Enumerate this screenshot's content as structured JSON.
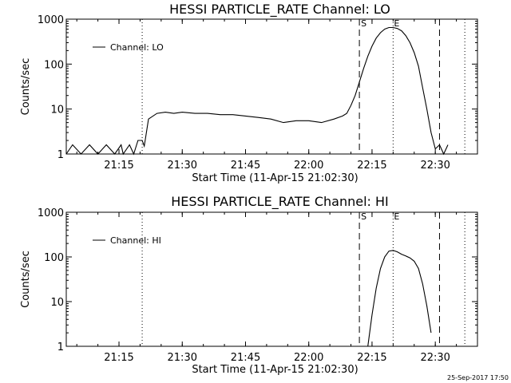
{
  "chart_data": [
    {
      "type": "line",
      "title": "HESSI PARTICLE_RATE Channel: LO",
      "xlabel": "Start Time (11-Apr-15 21:02:30)",
      "ylabel": "Counts/sec",
      "yscale": "log",
      "ylim": [
        1,
        1000
      ],
      "xlim": [
        "21:02:30",
        "22:40:00"
      ],
      "x_ticks": [
        "21:15",
        "21:30",
        "21:45",
        "22:00",
        "22:15",
        "22:30"
      ],
      "y_ticks": [
        "1",
        "10",
        "100",
        "1000"
      ],
      "grid": false,
      "legend_position": "top-left",
      "flare_markers": {
        "start_label": "S",
        "end_label": "E"
      },
      "series": [
        {
          "name": "Channel: LO",
          "x": [
            "21:02:30",
            "21:04:00",
            "21:06:00",
            "21:08:00",
            "21:10:00",
            "21:12:00",
            "21:14:00",
            "21:15:30",
            "21:16:00",
            "21:17:30",
            "21:18:30",
            "21:19:30",
            "21:20:30",
            "21:21:00",
            "21:22:00",
            "21:24:00",
            "21:26:00",
            "21:28:00",
            "21:30:00",
            "21:33:00",
            "21:36:00",
            "21:39:00",
            "21:42:00",
            "21:45:00",
            "21:48:00",
            "21:51:00",
            "21:54:00",
            "21:57:00",
            "22:00:00",
            "22:03:00",
            "22:06:00",
            "22:08:00",
            "22:09:00",
            "22:10:00",
            "22:11:00",
            "22:12:00",
            "22:13:00",
            "22:14:00",
            "22:15:00",
            "22:16:00",
            "22:17:00",
            "22:18:00",
            "22:19:00",
            "22:20:00",
            "22:21:00",
            "22:22:00",
            "22:23:00",
            "22:24:00",
            "22:25:00",
            "22:26:00",
            "22:27:00",
            "22:28:00",
            "22:29:00",
            "22:30:00",
            "22:31:00",
            "22:32:00",
            "22:33:00"
          ],
          "y": [
            1,
            1.6,
            1,
            1.6,
            1,
            1.6,
            1,
            1.6,
            1,
            1.6,
            1,
            2,
            2,
            1.5,
            6,
            8,
            8.5,
            8,
            8.5,
            8,
            8,
            7.5,
            7.5,
            7,
            6.5,
            6,
            5,
            5.5,
            5.5,
            5,
            6,
            7,
            8,
            12,
            20,
            40,
            80,
            150,
            250,
            380,
            500,
            600,
            650,
            650,
            620,
            550,
            430,
            300,
            180,
            90,
            30,
            10,
            3,
            1.3,
            1.6,
            1,
            1.6
          ]
        }
      ]
    },
    {
      "type": "line",
      "title": "HESSI PARTICLE_RATE Channel: HI",
      "xlabel": "Start Time (11-Apr-15 21:02:30)",
      "ylabel": "Counts/sec",
      "yscale": "log",
      "ylim": [
        1,
        1000
      ],
      "xlim": [
        "21:02:30",
        "22:40:00"
      ],
      "x_ticks": [
        "21:15",
        "21:30",
        "21:45",
        "22:00",
        "22:15",
        "22:30"
      ],
      "y_ticks": [
        "1",
        "10",
        "100",
        "1000"
      ],
      "grid": false,
      "legend_position": "top-left",
      "flare_markers": {
        "start_label": "S",
        "end_label": "E"
      },
      "series": [
        {
          "name": "Channel: HI",
          "x": [
            "22:14:00",
            "22:15:00",
            "22:16:00",
            "22:17:00",
            "22:18:00",
            "22:19:00",
            "22:20:00",
            "22:21:00",
            "22:22:00",
            "22:23:00",
            "22:24:00",
            "22:25:00",
            "22:26:00",
            "22:27:00",
            "22:28:00",
            "22:29:00"
          ],
          "y": [
            1,
            5,
            20,
            55,
            100,
            135,
            140,
            130,
            115,
            105,
            95,
            80,
            55,
            25,
            8,
            2
          ]
        }
      ]
    }
  ],
  "footer": {
    "timestamp": "25-Sep-2017 17:50"
  }
}
